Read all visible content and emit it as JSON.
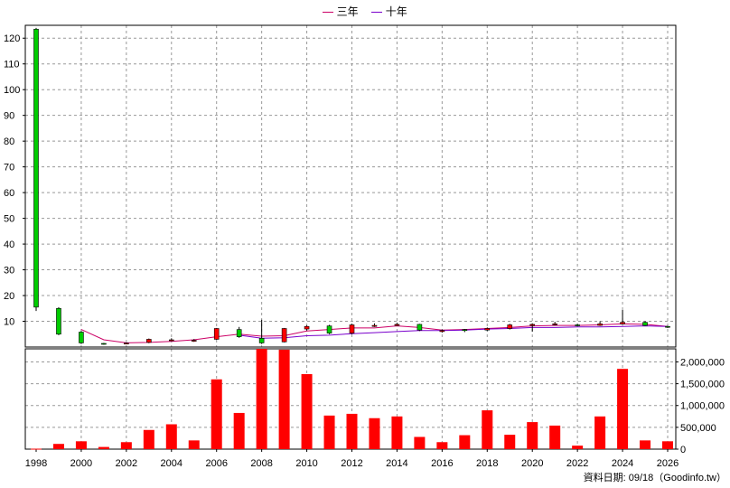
{
  "legend": {
    "items": [
      {
        "label": "三年",
        "color": "#cc0066"
      },
      {
        "label": "十年",
        "color": "#7a00cc"
      }
    ]
  },
  "source_note": "資料日期: 09/18（Goodinfo.tw）",
  "chart_data": [
    {
      "type": "candlestick",
      "name": "price",
      "ylim": [
        0,
        125
      ],
      "y_ticks": [
        10,
        20,
        30,
        40,
        50,
        60,
        70,
        80,
        90,
        100,
        110,
        120
      ],
      "colors": {
        "up": "#ff0000",
        "down": "#00cc00",
        "wick": "#000000"
      },
      "candles": [
        {
          "year": 1998,
          "open": 123.5,
          "close": 15.5,
          "high": 124,
          "low": 14
        },
        {
          "year": 1999,
          "open": 15,
          "close": 5,
          "high": 15.5,
          "low": 4.6
        },
        {
          "year": 2000,
          "open": 5.8,
          "close": 1.6,
          "high": 6.2,
          "low": 1.2
        },
        {
          "year": 2001,
          "open": 1.4,
          "close": 1.1,
          "high": 1.6,
          "low": 0.9
        },
        {
          "year": 2002,
          "open": 1.5,
          "close": 1.5,
          "high": 1.7,
          "low": 1.2
        },
        {
          "year": 2003,
          "open": 1.8,
          "close": 3.0,
          "high": 3.3,
          "low": 1.5
        },
        {
          "year": 2004,
          "open": 2.6,
          "close": 2.8,
          "high": 3.4,
          "low": 2.3
        },
        {
          "year": 2005,
          "open": 2.3,
          "close": 2.6,
          "high": 3.1,
          "low": 2.0
        },
        {
          "year": 2006,
          "open": 3.0,
          "close": 7.2,
          "high": 7.4,
          "low": 2.8
        },
        {
          "year": 2007,
          "open": 6.8,
          "close": 4.0,
          "high": 7.8,
          "low": 3.6
        },
        {
          "year": 2008,
          "open": 3.4,
          "close": 1.6,
          "high": 10.6,
          "low": 1.2
        },
        {
          "year": 2009,
          "open": 2.0,
          "close": 7.2,
          "high": 7.4,
          "low": 1.8
        },
        {
          "year": 2010,
          "open": 7.0,
          "close": 8.0,
          "high": 8.4,
          "low": 6.4
        },
        {
          "year": 2011,
          "open": 8.2,
          "close": 5.4,
          "high": 8.6,
          "low": 5.0
        },
        {
          "year": 2012,
          "open": 5.4,
          "close": 8.6,
          "high": 9.0,
          "low": 5.0
        },
        {
          "year": 2013,
          "open": 8.0,
          "close": 8.4,
          "high": 9.2,
          "low": 7.8
        },
        {
          "year": 2014,
          "open": 8.4,
          "close": 8.8,
          "high": 9.4,
          "low": 8.2
        },
        {
          "year": 2015,
          "open": 8.8,
          "close": 6.6,
          "high": 9.0,
          "low": 6.2
        },
        {
          "year": 2016,
          "open": 6.0,
          "close": 6.4,
          "high": 6.8,
          "low": 5.6
        },
        {
          "year": 2017,
          "open": 6.8,
          "close": 6.4,
          "high": 7.0,
          "low": 5.8
        },
        {
          "year": 2018,
          "open": 6.6,
          "close": 7.2,
          "high": 7.6,
          "low": 6.2
        },
        {
          "year": 2019,
          "open": 7.2,
          "close": 8.6,
          "high": 9.0,
          "low": 6.8
        },
        {
          "year": 2020,
          "open": 8.4,
          "close": 8.8,
          "high": 9.2,
          "low": 6.0
        },
        {
          "year": 2021,
          "open": 8.8,
          "close": 9.0,
          "high": 9.8,
          "low": 8.4
        },
        {
          "year": 2022,
          "open": 8.6,
          "close": 8.4,
          "high": 9.0,
          "low": 8.0
        },
        {
          "year": 2023,
          "open": 8.4,
          "close": 9.0,
          "high": 10.0,
          "low": 8.2
        },
        {
          "year": 2024,
          "open": 9.0,
          "close": 9.6,
          "high": 14.4,
          "low": 8.8
        },
        {
          "year": 2025,
          "open": 9.6,
          "close": 8.4,
          "high": 10.0,
          "low": 8.2
        },
        {
          "year": 2026,
          "open": 8.0,
          "close": 7.8,
          "high": 8.2,
          "low": 7.4
        }
      ],
      "ma_series": [
        {
          "name": "三年",
          "color": "#cc0066",
          "points": [
            [
              2000,
              6.8
            ],
            [
              2001,
              2.8
            ],
            [
              2002,
              1.6
            ],
            [
              2003,
              1.8
            ],
            [
              2004,
              2.2
            ],
            [
              2005,
              2.8
            ],
            [
              2006,
              4.0
            ],
            [
              2007,
              5.0
            ],
            [
              2008,
              4.2
            ],
            [
              2009,
              4.4
            ],
            [
              2010,
              6.2
            ],
            [
              2011,
              6.8
            ],
            [
              2012,
              7.4
            ],
            [
              2013,
              7.4
            ],
            [
              2014,
              8.2
            ],
            [
              2015,
              7.6
            ],
            [
              2016,
              6.6
            ],
            [
              2017,
              6.8
            ],
            [
              2018,
              7.2
            ],
            [
              2019,
              7.6
            ],
            [
              2020,
              8.2
            ],
            [
              2021,
              8.4
            ],
            [
              2022,
              8.4
            ],
            [
              2023,
              8.6
            ],
            [
              2024,
              9.0
            ],
            [
              2025,
              8.8
            ],
            [
              2026,
              8.0
            ]
          ]
        },
        {
          "name": "十年",
          "color": "#7a00cc",
          "points": [
            [
              2007,
              4.6
            ],
            [
              2008,
              3.4
            ],
            [
              2009,
              3.6
            ],
            [
              2010,
              4.4
            ],
            [
              2011,
              4.6
            ],
            [
              2012,
              5.2
            ],
            [
              2013,
              5.6
            ],
            [
              2014,
              6.0
            ],
            [
              2015,
              6.4
            ],
            [
              2016,
              6.4
            ],
            [
              2017,
              6.6
            ],
            [
              2018,
              7.0
            ],
            [
              2019,
              7.2
            ],
            [
              2020,
              7.6
            ],
            [
              2021,
              7.6
            ],
            [
              2022,
              7.8
            ],
            [
              2023,
              7.8
            ],
            [
              2024,
              8.0
            ],
            [
              2025,
              8.2
            ],
            [
              2026,
              8.0
            ]
          ]
        }
      ]
    },
    {
      "type": "bar",
      "name": "volume",
      "ylim": [
        0,
        2300000
      ],
      "y_ticks": [
        0,
        500000,
        1000000,
        1500000,
        2000000
      ],
      "y_tick_labels": [
        "0",
        "500,000",
        "1,000,000",
        "1,500,000",
        "2,000,000"
      ],
      "color": "#ff0000",
      "categories": [
        1998,
        1999,
        2000,
        2001,
        2002,
        2003,
        2004,
        2005,
        2006,
        2007,
        2008,
        2009,
        2010,
        2011,
        2012,
        2013,
        2014,
        2015,
        2016,
        2017,
        2018,
        2019,
        2020,
        2021,
        2022,
        2023,
        2024,
        2025,
        2026
      ],
      "values": [
        10000,
        120000,
        180000,
        50000,
        160000,
        440000,
        570000,
        200000,
        1600000,
        830000,
        2300000,
        2280000,
        1720000,
        770000,
        810000,
        710000,
        750000,
        280000,
        160000,
        320000,
        890000,
        330000,
        620000,
        540000,
        80000,
        750000,
        1840000,
        200000,
        180000
      ]
    }
  ],
  "x_axis": {
    "tick_labels": [
      "1998",
      "2000",
      "2002",
      "2004",
      "2006",
      "2008",
      "2010",
      "2012",
      "2014",
      "2016",
      "2018",
      "2020",
      "2022",
      "2024",
      "2026"
    ]
  }
}
